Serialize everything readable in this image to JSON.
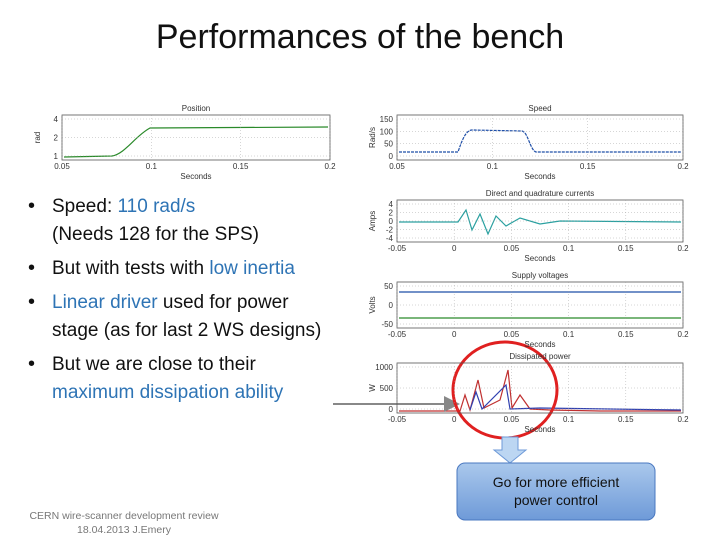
{
  "title": "Performances of the bench",
  "bullets": [
    {
      "lines": [
        [
          {
            "text": "Speed: "
          },
          {
            "text": "110 rad/s",
            "color": "#2e74b5"
          }
        ],
        [
          {
            "text": "(Needs 128 for the SPS)"
          }
        ]
      ]
    },
    {
      "lines": [
        [
          {
            "text": "But with tests with "
          },
          {
            "text": "low inertia",
            "color": "#2e74b5"
          }
        ]
      ]
    },
    {
      "lines": [
        [
          {
            "text": "Linear driver",
            "color": "#2e74b5"
          },
          {
            "text": " used for power"
          }
        ],
        [
          {
            "text": "stage (as for last 2 WS designs)"
          }
        ]
      ]
    },
    {
      "lines": [
        [
          {
            "text": "But we are close to their"
          }
        ],
        [
          {
            "text": "maximum dissipation ability",
            "color": "#2e74b5"
          }
        ]
      ]
    }
  ],
  "plots": [
    {
      "title": "Position",
      "ylabel": "rad",
      "xlabel": "Seconds",
      "yticks": [
        "4",
        "2",
        "1"
      ],
      "xticks": [
        "0.05",
        "0.1",
        "0.15",
        "0.2"
      ]
    },
    {
      "title": "Speed",
      "ylabel": "Rad/s",
      "xlabel": "Seconds",
      "yticks": [
        "150",
        "100",
        "50",
        "0"
      ],
      "xticks": [
        "0.05",
        "0.1",
        "0.15",
        "0.2"
      ]
    },
    {
      "title": "Direct and quadrature currents",
      "ylabel": "Amps",
      "xlabel": "Seconds",
      "yticks": [
        "4",
        "2",
        "0",
        "-2",
        "-4"
      ],
      "xticks": [
        "-0.05",
        "0",
        "0.05",
        "0.1",
        "0.15",
        "0.2"
      ]
    },
    {
      "title": "Supply voltages",
      "ylabel": "Volts",
      "xlabel": "Seconds",
      "yticks": [
        "50",
        "0",
        "-50"
      ],
      "xticks": [
        "-0.05",
        "0",
        "0.05",
        "0.1",
        "0.15",
        "0.2"
      ]
    },
    {
      "title": "Dissipated power",
      "ylabel": "W",
      "xlabel": "Seconds",
      "yticks": [
        "1000",
        "500",
        "0"
      ],
      "xticks": [
        "-0.05",
        "0",
        "0.05",
        "0.1",
        "0.15",
        "0.2"
      ]
    }
  ],
  "callout": {
    "lines": [
      "Go for more efficient",
      "power control"
    ]
  },
  "footer": {
    "lines": [
      "CERN wire-scanner development review",
      "18.04.2013 J.Emery"
    ]
  }
}
